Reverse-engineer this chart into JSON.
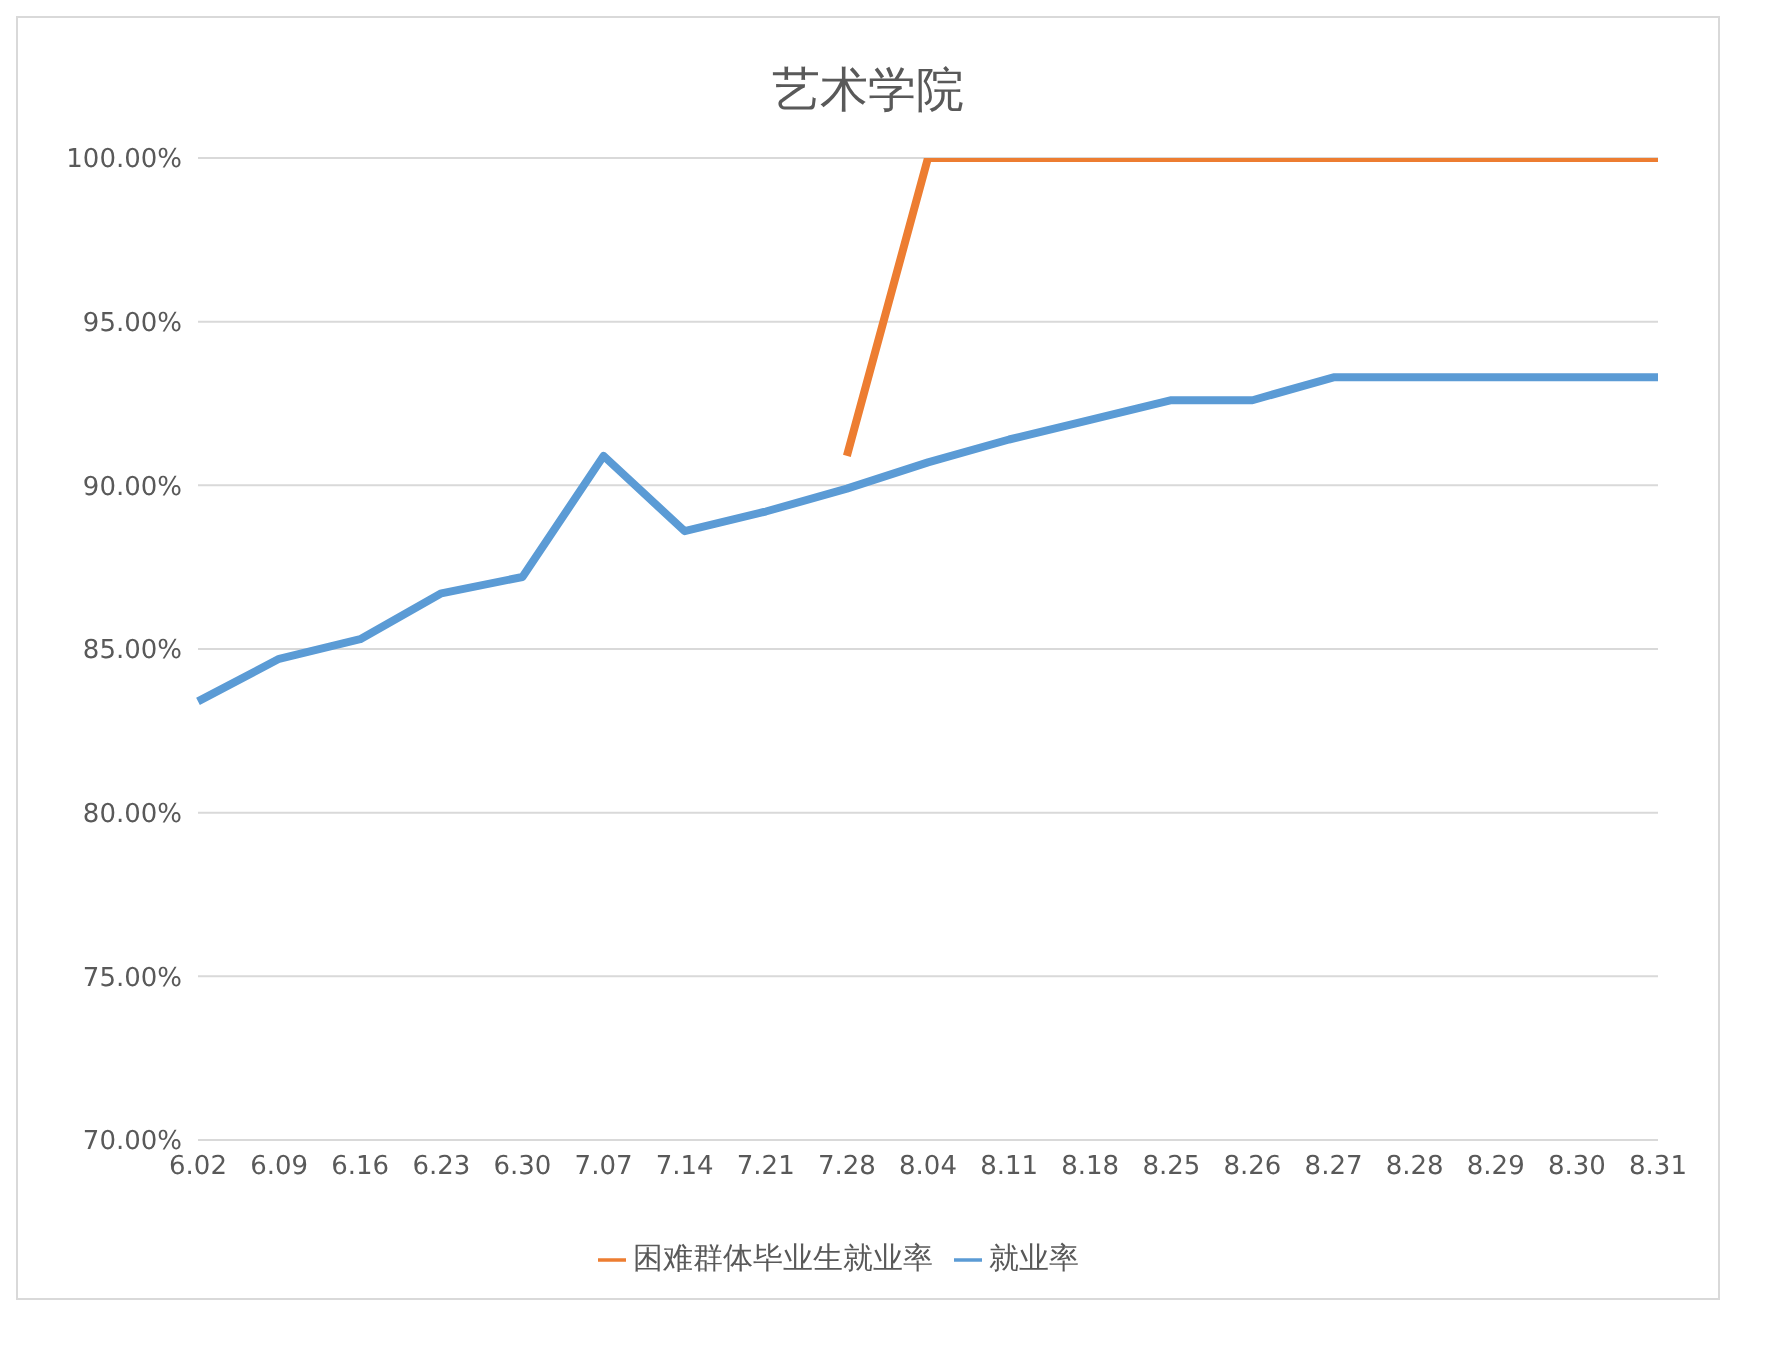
{
  "chart_data": {
    "type": "line",
    "title": "艺术学院",
    "categories": [
      "6.02",
      "6.09",
      "6.16",
      "6.23",
      "6.30",
      "7.07",
      "7.14",
      "7.21",
      "7.28",
      "8.04",
      "8.11",
      "8.18",
      "8.25",
      "8.26",
      "8.27",
      "8.28",
      "8.29",
      "8.30",
      "8.31"
    ],
    "series": [
      {
        "name": "就业率",
        "color": "#5b9bd5",
        "values": [
          83.4,
          84.7,
          85.3,
          86.7,
          87.2,
          90.9,
          88.6,
          89.2,
          89.9,
          90.7,
          91.4,
          92.0,
          92.6,
          92.6,
          93.3,
          93.3,
          93.3,
          93.3,
          93.3
        ]
      },
      {
        "name": "困难群体毕业生就业率",
        "color": "#ed7d31",
        "values": [
          null,
          null,
          null,
          null,
          null,
          null,
          null,
          null,
          90.9,
          100,
          100,
          100,
          100,
          100,
          100,
          100,
          100,
          100,
          100
        ]
      }
    ],
    "ylim": [
      70,
      100
    ],
    "yticks": [
      {
        "value": 70,
        "label": "70.00%"
      },
      {
        "value": 75,
        "label": "75.00%"
      },
      {
        "value": 80,
        "label": "80.00%"
      },
      {
        "value": 85,
        "label": "85.00%"
      },
      {
        "value": 90,
        "label": "90.00%"
      },
      {
        "value": 95,
        "label": "95.00%"
      },
      {
        "value": 100,
        "label": "100.00%"
      }
    ],
    "grid": "y",
    "legend": "bottom",
    "marker": "none",
    "line_style": "solid"
  }
}
